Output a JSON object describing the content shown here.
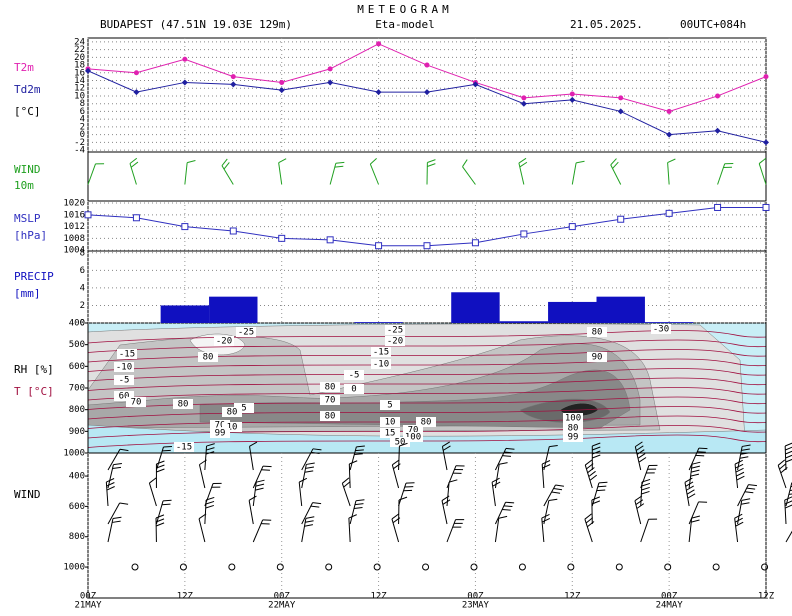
{
  "header": {
    "title": "METEOGRAM",
    "location": "BUDAPEST (47.51N 19.03E  129m)",
    "model": "Eta-model",
    "date": "21.05.2025.",
    "run": "00UTC+084h"
  },
  "time_axis": {
    "labels": [
      {
        "hour": "00Z",
        "date": "21MAY"
      },
      {
        "hour": "12Z"
      },
      {
        "hour": "00Z",
        "date": "22MAY"
      },
      {
        "hour": "12Z"
      },
      {
        "hour": "00Z",
        "date": "23MAY"
      },
      {
        "hour": "12Z"
      },
      {
        "hour": "00Z",
        "date": "24MAY"
      },
      {
        "hour": "12Z"
      }
    ]
  },
  "chart_data": [
    {
      "type": "line",
      "axis_label": "[°C]",
      "ylim": [
        -4.5,
        25
      ],
      "yticks": [
        24,
        22,
        20,
        18,
        16,
        14,
        12,
        10,
        8,
        6,
        4,
        2,
        0,
        -2,
        -4
      ],
      "grid": true,
      "series": [
        {
          "name": "T2m",
          "color": "#e020b0",
          "marker": "circle",
          "values": [
            17,
            16,
            19.5,
            15,
            13.5,
            17,
            23.5,
            18,
            13.5,
            9.5,
            10.5,
            9.5,
            6,
            10,
            15
          ]
        },
        {
          "name": "Td2m",
          "color": "#2020a0",
          "marker": "diamond",
          "values": [
            16.5,
            11,
            13.5,
            13,
            11.5,
            13.5,
            11,
            11,
            13,
            8,
            9,
            6,
            0,
            1,
            -2
          ]
        }
      ]
    },
    {
      "type": "barbs",
      "labels": [
        "WIND",
        "10m"
      ],
      "color": "#20a020"
    },
    {
      "type": "line",
      "axis_label": "[hPa]",
      "ylim": [
        1003.7,
        1020.7
      ],
      "yticks": [
        1020,
        1016,
        1012,
        1008,
        1004
      ],
      "grid": true,
      "series": [
        {
          "name": "MSLP",
          "color": "#3030c0",
          "marker": "square",
          "values": [
            1016,
            1015,
            1012,
            1010.5,
            1008,
            1007.5,
            1005.5,
            1005.5,
            1006.5,
            1009.5,
            1012,
            1014.5,
            1016.5,
            1018.5,
            1018.5
          ]
        }
      ]
    },
    {
      "type": "bar",
      "name": "PRECIP",
      "axis_label": "[mm]",
      "color": "#1010c0",
      "ylim": [
        0,
        8.2
      ],
      "yticks": [
        8,
        6,
        4,
        2,
        0
      ],
      "grid": true,
      "values": [
        0,
        0,
        2,
        3,
        0,
        0,
        0.1,
        0,
        3.5,
        0.2,
        2.4,
        3,
        0.1,
        0,
        0
      ]
    },
    {
      "type": "contour",
      "labels": [
        "RH [%]",
        "T [°C]"
      ],
      "ylim": [
        1000,
        400
      ],
      "yticks": [
        400,
        500,
        600,
        700,
        800,
        900,
        1000
      ],
      "contour_labels": [
        "-25",
        "-20",
        "80",
        "-15",
        "-10",
        "-5",
        "60",
        "70",
        "80",
        "5",
        "80",
        "70",
        "10",
        "99",
        "-15",
        "-25",
        "-20",
        "-15",
        "-10",
        "-5",
        "0",
        "80",
        "70",
        "80",
        "5",
        "10",
        "15",
        "80",
        "70",
        "100",
        "50",
        "-30",
        "80",
        "90",
        "100",
        "80",
        "99"
      ]
    },
    {
      "type": "barbs",
      "labels": [
        "WIND"
      ],
      "ylim": [
        1204,
        248
      ],
      "yticks": [
        400,
        600,
        800,
        1000
      ],
      "color": "#000000"
    }
  ]
}
